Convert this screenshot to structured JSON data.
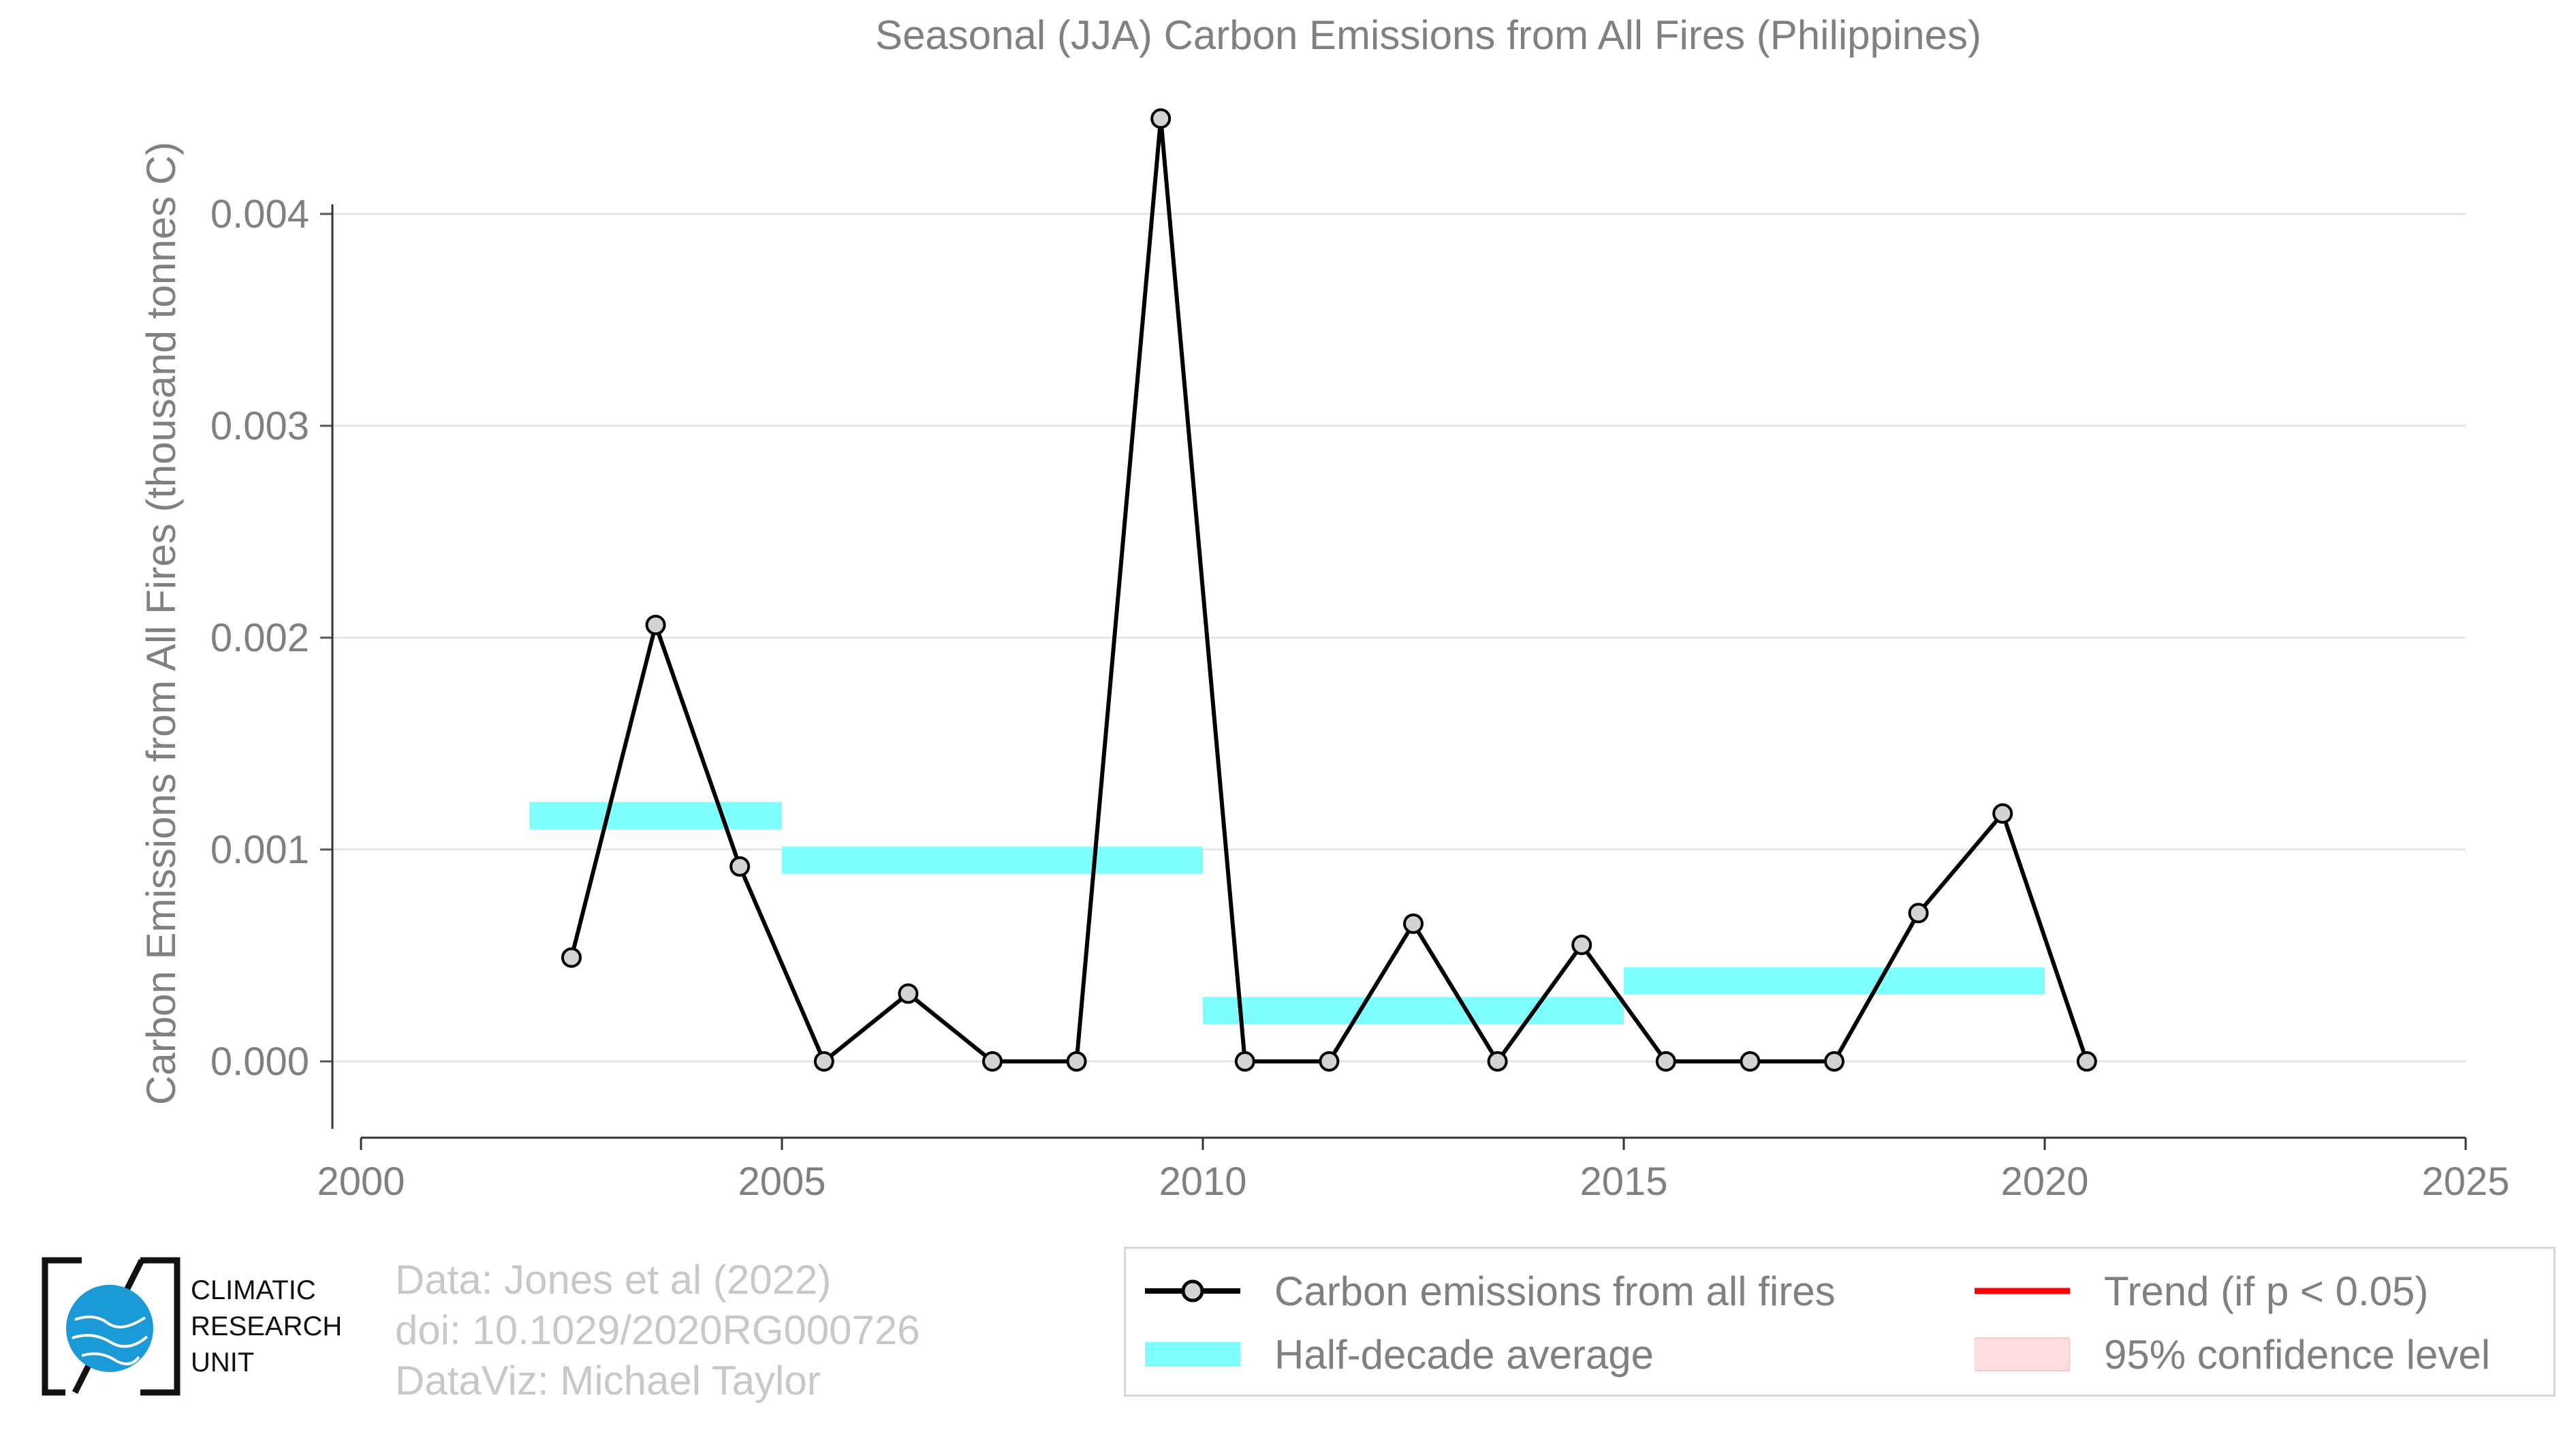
{
  "title": "Seasonal (JJA) Carbon Emissions from All Fires (Philippines)",
  "chart_data": {
    "type": "line",
    "title": "Seasonal (JJA) Carbon Emissions from All Fires (Philippines)",
    "xlabel": "",
    "ylabel": "Carbon Emissions from All Fires (thousand tonnes C)",
    "xlim": [
      2000,
      2025
    ],
    "ylim": [
      -0.00035,
      0.0046
    ],
    "xticks": [
      2000,
      2005,
      2010,
      2015,
      2020,
      2025
    ],
    "xtick_labels": [
      "2000",
      "2005",
      "2010",
      "2015",
      "2020",
      "2025"
    ],
    "yticks": [
      0.0,
      0.001,
      0.002,
      0.003,
      0.004
    ],
    "ytick_labels": [
      "0.000",
      "0.001",
      "0.002",
      "0.003",
      "0.004"
    ],
    "grid": "horizontal",
    "legend_position": "bottom-right",
    "series": [
      {
        "name": "Carbon emissions from all fires",
        "color": "#000000",
        "marker_fill": "#d3d3d3",
        "x": [
          2002.5,
          2003.5,
          2004.5,
          2005.5,
          2006.5,
          2007.5,
          2008.5,
          2009.5,
          2010.5,
          2011.5,
          2012.5,
          2013.5,
          2014.5,
          2015.5,
          2016.5,
          2017.5,
          2018.5,
          2019.5,
          2020.5
        ],
        "y": [
          0.00049,
          0.00206,
          0.00092,
          0.0,
          0.00032,
          0.0,
          0.0,
          0.00445,
          0.0,
          0.0,
          0.00065,
          0.0,
          0.00055,
          0.0,
          0.0,
          0.0,
          0.0007,
          0.00117,
          0.0
        ]
      },
      {
        "name": "Half-decade average",
        "color": "#7fffff",
        "segments": [
          {
            "x_start": 2002,
            "x_end": 2005,
            "y": 0.00116
          },
          {
            "x_start": 2005,
            "x_end": 2010,
            "y": 0.00095
          },
          {
            "x_start": 2010,
            "x_end": 2015,
            "y": 0.00024
          },
          {
            "x_start": 2015,
            "x_end": 2020,
            "y": 0.00038
          }
        ]
      }
    ]
  },
  "legend": {
    "items": [
      {
        "label": "Carbon emissions from all fires",
        "color": "#000000"
      },
      {
        "label": "Half-decade average",
        "color": "#7fffff"
      },
      {
        "label": "Trend (if p < 0.05)",
        "color": "#ff0000"
      },
      {
        "label": "95% confidence level",
        "color": "#ffdde0"
      }
    ]
  },
  "credits": {
    "line1": "Data: Jones et al (2022)",
    "line2": "doi: 10.1029/2020RG000726",
    "line3": "DataViz: Michael Taylor"
  },
  "logo": {
    "line1": "CLIMATIC",
    "line2": "RESEARCH",
    "line3": "UNIT",
    "globe_color": "#1a9ad6"
  }
}
